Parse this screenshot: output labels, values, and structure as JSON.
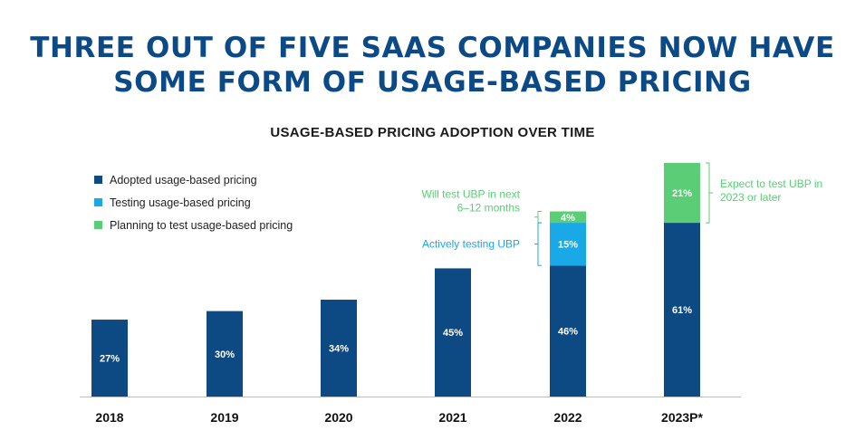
{
  "headline": {
    "line1": "THREE OUT OF FIVE SAAS COMPANIES NOW HAVE",
    "line2": "SOME FORM OF USAGE-BASED PRICING"
  },
  "chart_data": {
    "type": "bar",
    "stacked": true,
    "title": "USAGE-BASED PRICING ADOPTION OVER TIME",
    "categories": [
      "2018",
      "2019",
      "2020",
      "2021",
      "2022",
      "2023P*"
    ],
    "series": [
      {
        "name": "Adopted usage-based pricing",
        "color": "#0d4a84",
        "values": [
          27,
          30,
          34,
          45,
          46,
          61
        ],
        "labels": [
          "27%",
          "30%",
          "34%",
          "45%",
          "46%",
          "61%"
        ]
      },
      {
        "name": "Testing usage-based pricing",
        "color": "#18a9e6",
        "values": [
          0,
          0,
          0,
          0,
          15,
          0
        ],
        "labels": [
          "",
          "",
          "",
          "",
          "15%",
          ""
        ]
      },
      {
        "name": "Planning to test usage-based pricing",
        "color": "#5ccd77",
        "values": [
          0,
          0,
          0,
          0,
          4,
          21
        ],
        "labels": [
          "",
          "",
          "",
          "",
          "4%",
          "21%"
        ]
      }
    ],
    "ylim": [
      0,
      82
    ],
    "xlabel": "",
    "ylabel": "",
    "grid": false,
    "legend_position": "top-left",
    "annotations": [
      {
        "text": "Will test UBP in next\n6–12 months",
        "color": "#5ccd77",
        "category": "2022",
        "series": 2,
        "side": "left"
      },
      {
        "text": "Actively testing UBP",
        "color": "#18a9e6",
        "category": "2022",
        "series": 1,
        "side": "left"
      },
      {
        "text": "Expect to test UBP in\n2023 or later",
        "color": "#5ccd77",
        "category": "2023P*",
        "series": 2,
        "side": "right"
      }
    ]
  }
}
